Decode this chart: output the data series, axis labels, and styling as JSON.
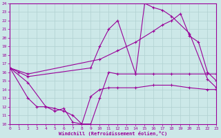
{
  "xlabel": "Windchill (Refroidissement éolien,°C)",
  "bg_color": "#cce8e8",
  "line_color": "#990099",
  "grid_color": "#b0d0d0",
  "xlim": [
    0,
    23
  ],
  "ylim": [
    10,
    24
  ],
  "xticks": [
    0,
    1,
    2,
    3,
    4,
    5,
    6,
    7,
    8,
    9,
    10,
    11,
    12,
    13,
    14,
    15,
    16,
    17,
    18,
    19,
    20,
    21,
    22,
    23
  ],
  "yticks": [
    10,
    11,
    12,
    13,
    14,
    15,
    16,
    17,
    18,
    19,
    20,
    21,
    22,
    23,
    24
  ],
  "line1_x": [
    0,
    1,
    2,
    9,
    10,
    11,
    12,
    14,
    15,
    16,
    17,
    18,
    20,
    22,
    23
  ],
  "line1_y": [
    16.5,
    16.0,
    15.5,
    16.5,
    19.0,
    21.0,
    22.0,
    15.8,
    24.0,
    23.5,
    23.2,
    22.5,
    20.5,
    15.2,
    14.2
  ],
  "line2_x": [
    0,
    2,
    10,
    12,
    14,
    16,
    17,
    18,
    19,
    20,
    21,
    22,
    23
  ],
  "line2_y": [
    16.5,
    15.8,
    17.5,
    18.5,
    19.5,
    20.8,
    21.5,
    22.0,
    22.8,
    20.2,
    19.5,
    16.0,
    15.0
  ],
  "line3_x": [
    0,
    2,
    4,
    5,
    6,
    7,
    8,
    9,
    10,
    11,
    12,
    14,
    16,
    18,
    20,
    22,
    23
  ],
  "line3_y": [
    16.5,
    14.8,
    12.0,
    11.8,
    11.5,
    11.0,
    10.0,
    10.0,
    13.0,
    16.0,
    15.8,
    15.8,
    15.8,
    15.8,
    15.8,
    15.8,
    15.8
  ],
  "line4_x": [
    0,
    2,
    3,
    4,
    5,
    6,
    7,
    8,
    9,
    10,
    11,
    12,
    14,
    16,
    18,
    20,
    22,
    23
  ],
  "line4_y": [
    16.5,
    13.0,
    12.0,
    12.0,
    11.5,
    11.8,
    10.2,
    10.0,
    13.2,
    14.0,
    14.2,
    14.2,
    14.2,
    14.5,
    14.5,
    14.2,
    14.0,
    14.0
  ]
}
